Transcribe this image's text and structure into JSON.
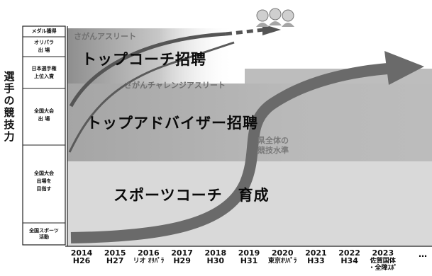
{
  "axis": {
    "y_title": "選手の競技力",
    "levels": [
      {
        "id": "medal",
        "text": "メダル獲得"
      },
      {
        "id": "olypara",
        "text": "オリパラ\n出 場"
      },
      {
        "id": "japan",
        "text": "日本選手権\n上位入賞"
      },
      {
        "id": "national_entry",
        "text": "全国大会\n出 場"
      },
      {
        "id": "national_aim",
        "text": "全国大会\n出場を\n目指す"
      },
      {
        "id": "sports",
        "text": "全国スポーツ\n活動"
      }
    ]
  },
  "timeline": [
    {
      "year": "2014",
      "era": "H26"
    },
    {
      "year": "2015",
      "era": "H27"
    },
    {
      "year": "2016",
      "era": "リオ ｵﾘﾊﾟﾗ"
    },
    {
      "year": "2017",
      "era": "H29"
    },
    {
      "year": "2018",
      "era": "H30"
    },
    {
      "year": "2019",
      "era": "H31"
    },
    {
      "year": "2020",
      "era": "東京ｵﾘﾊﾟﾗ"
    },
    {
      "year": "2021",
      "era": "H33"
    },
    {
      "year": "2022",
      "era": "H34"
    },
    {
      "year": "2023",
      "era": "佐賀国体\n・全障ｽﾎﾟ"
    }
  ],
  "timeline_more": "…",
  "labels": {
    "saga_athlete": "さがんアスリート",
    "top_coach": "トップコーチ招聘",
    "saga_challenge": "さがんチャレンジアスリート",
    "top_advisor": "トップアドバイザー招聘",
    "prefecture_level": "県全体の\n競技水準",
    "sports_coach": "スポーツコーチ　育成"
  },
  "colors": {
    "arrow": "#6a6a6a",
    "band_dark": "#b7b7b7",
    "band_light": "#d9d9d9",
    "gradient_top": "#9a9a9a"
  }
}
